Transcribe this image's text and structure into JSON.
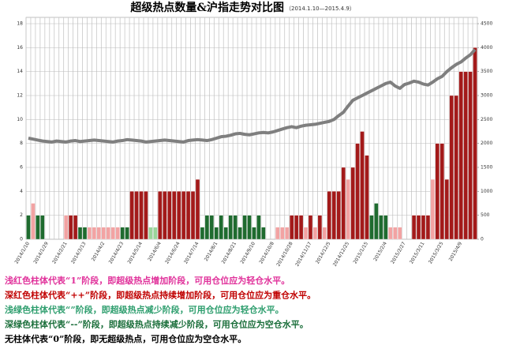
{
  "chart_data": {
    "type": "bar",
    "title": "超级热点数量&沪指走势对比图",
    "subtitle": "（2014.1.10—2015.4.9）",
    "categories": [
      "2014/1/10",
      null,
      null,
      null,
      "2014/1/29",
      null,
      null,
      null,
      "2014/2/21",
      null,
      null,
      null,
      "2014/3/13",
      null,
      null,
      null,
      "2014/4/2",
      null,
      null,
      null,
      "2014/4/23",
      null,
      null,
      null,
      "2014/5/14",
      null,
      null,
      null,
      "2014/6/4",
      null,
      null,
      null,
      "2014/6/24",
      null,
      null,
      null,
      "2014/7/14",
      null,
      null,
      null,
      "2014/8/1",
      null,
      null,
      null,
      "2014/8/21",
      null,
      null,
      null,
      "2014/9/10",
      null,
      null,
      null,
      "2014/10/8",
      null,
      null,
      null,
      "2014/10/28",
      null,
      null,
      null,
      "2014/11/17",
      null,
      null,
      null,
      "2014/12/5",
      null,
      null,
      null,
      "2014/12/25",
      null,
      null,
      null,
      "2015/1/15",
      null,
      null,
      null,
      "2015/2/4",
      null,
      null,
      null,
      "2015/2/27",
      null,
      null,
      null,
      "2015/3/11",
      null,
      null,
      null,
      "2015/3/25",
      null,
      null,
      null,
      "2015/4/9",
      null,
      null,
      null
    ],
    "series": [
      {
        "color": "#f2a3a3",
        "values": [
          null,
          3,
          null,
          null,
          null,
          null,
          null,
          null,
          2,
          null,
          null,
          null,
          null,
          1,
          1,
          1,
          1,
          1,
          1,
          1,
          null,
          null,
          null,
          null,
          null,
          null,
          null,
          null,
          null,
          null,
          null,
          null,
          null,
          null,
          null,
          null,
          null,
          null,
          null,
          null,
          null,
          null,
          null,
          null,
          null,
          null,
          null,
          null,
          null,
          null,
          null,
          null,
          null,
          1,
          1,
          1,
          null,
          null,
          null,
          1,
          null,
          1,
          null,
          1,
          null,
          null,
          null,
          null,
          5,
          null,
          null,
          null,
          null,
          null,
          null,
          null,
          null,
          1,
          1,
          1,
          null,
          null,
          null,
          null,
          null,
          null,
          5,
          null,
          null,
          null,
          null,
          null,
          null,
          null,
          null,
          null
        ]
      },
      {
        "color": "#a31a1a",
        "values": [
          null,
          null,
          null,
          null,
          null,
          null,
          null,
          null,
          null,
          2,
          2,
          null,
          null,
          null,
          null,
          null,
          null,
          null,
          null,
          null,
          null,
          null,
          4,
          4,
          4,
          4,
          null,
          null,
          4,
          4,
          4,
          4,
          4,
          4,
          4,
          4,
          5,
          null,
          null,
          null,
          null,
          null,
          null,
          null,
          null,
          null,
          null,
          null,
          null,
          null,
          null,
          null,
          null,
          null,
          null,
          null,
          2,
          2,
          2,
          null,
          2,
          null,
          2,
          null,
          4,
          4,
          4,
          6,
          null,
          6,
          8,
          9,
          7,
          null,
          null,
          null,
          null,
          null,
          null,
          null,
          null,
          null,
          2,
          2,
          2,
          2,
          null,
          8,
          8,
          5,
          12,
          12,
          14,
          14,
          14,
          16
        ]
      },
      {
        "color": "#9ad49a",
        "values": [
          null,
          null,
          null,
          null,
          null,
          null,
          null,
          null,
          null,
          null,
          null,
          null,
          null,
          null,
          null,
          null,
          null,
          null,
          null,
          null,
          null,
          null,
          null,
          null,
          null,
          null,
          1,
          1,
          null,
          null,
          null,
          null,
          null,
          null,
          null,
          null,
          null,
          null,
          null,
          null,
          null,
          null,
          null,
          null,
          null,
          null,
          null,
          null,
          null,
          null,
          null,
          null,
          null,
          null,
          null,
          null,
          null,
          null,
          null,
          null,
          null,
          null,
          null,
          null,
          null,
          null,
          null,
          null,
          null,
          null,
          null,
          null,
          null,
          null,
          null,
          null,
          null,
          null,
          null,
          null,
          null,
          null,
          null,
          null,
          null,
          null,
          null,
          null,
          null,
          null,
          null,
          null,
          null,
          null,
          null,
          null
        ]
      },
      {
        "color": "#1f6b2f",
        "values": [
          2,
          null,
          2,
          2,
          null,
          null,
          null,
          null,
          null,
          null,
          null,
          1,
          1,
          null,
          null,
          null,
          null,
          null,
          null,
          null,
          1,
          1,
          null,
          null,
          null,
          null,
          null,
          null,
          null,
          null,
          null,
          null,
          null,
          null,
          null,
          null,
          null,
          1,
          2,
          2,
          1,
          2,
          1,
          2,
          2,
          1,
          2,
          2,
          1,
          2,
          1,
          null,
          null,
          null,
          null,
          null,
          null,
          null,
          null,
          null,
          null,
          null,
          null,
          null,
          null,
          null,
          null,
          null,
          null,
          null,
          null,
          null,
          null,
          2,
          3,
          2,
          2,
          null,
          null,
          null,
          null,
          null,
          null,
          null,
          null,
          null,
          null,
          null,
          null,
          null,
          null,
          null,
          null,
          null,
          null,
          null
        ]
      },
      {
        "type": "line",
        "axis": "y2",
        "color": "#7f7f7f",
        "values": [
          2110,
          2090,
          2070,
          2050,
          2040,
          2030,
          2050,
          2040,
          2030,
          2050,
          2060,
          2040,
          2050,
          2060,
          2070,
          2060,
          2050,
          2040,
          2030,
          2050,
          2060,
          2080,
          2070,
          2060,
          2050,
          2030,
          2040,
          2050,
          2060,
          2070,
          2060,
          2050,
          2040,
          2030,
          2060,
          2070,
          2080,
          2070,
          2060,
          2080,
          2110,
          2140,
          2150,
          2170,
          2200,
          2210,
          2190,
          2180,
          2200,
          2220,
          2230,
          2220,
          2240,
          2270,
          2300,
          2330,
          2350,
          2330,
          2360,
          2380,
          2390,
          2400,
          2420,
          2440,
          2460,
          2500,
          2580,
          2650,
          2780,
          2900,
          2950,
          3000,
          3050,
          3100,
          3150,
          3200,
          3250,
          3280,
          3200,
          3150,
          3230,
          3260,
          3300,
          3280,
          3240,
          3220,
          3280,
          3350,
          3400,
          3500,
          3580,
          3650,
          3700,
          3780,
          3850,
          3960
        ]
      }
    ],
    "ylim": [
      0,
      18
    ],
    "yticks": [
      0,
      2,
      4,
      6,
      8,
      10,
      12,
      14,
      16,
      18
    ],
    "y2lim": [
      0,
      4500
    ],
    "y2ticks": [
      0,
      500,
      1000,
      1500,
      2000,
      2500,
      3000,
      3500,
      4000,
      4500
    ],
    "grid": true
  },
  "notes": [
    {
      "text": "浅红色柱体代表“1”阶段，即超级热点增加阶段，可用仓位应为轻仓水平。",
      "color": "#e0309a"
    },
    {
      "text": "深红色柱体代表“++”阶段，即超级热点持续增加阶段，可用仓位应为重仓水平。",
      "color": "#c00000"
    },
    {
      "text": "浅绿色柱体代表“”阶段，即超级热点减少阶段，可用仓位应为轻仓水平。",
      "color": "#2e9e6e"
    },
    {
      "text": "深绿色柱体代表“--”阶段，即超级热点持续减少阶段，可用仓位应为空仓水平。",
      "color": "#1a6e3a"
    },
    {
      "text": "无柱体代表“0”阶段，即无超级热点，可用仓位应为空仓水平。",
      "color": "#000000"
    }
  ]
}
